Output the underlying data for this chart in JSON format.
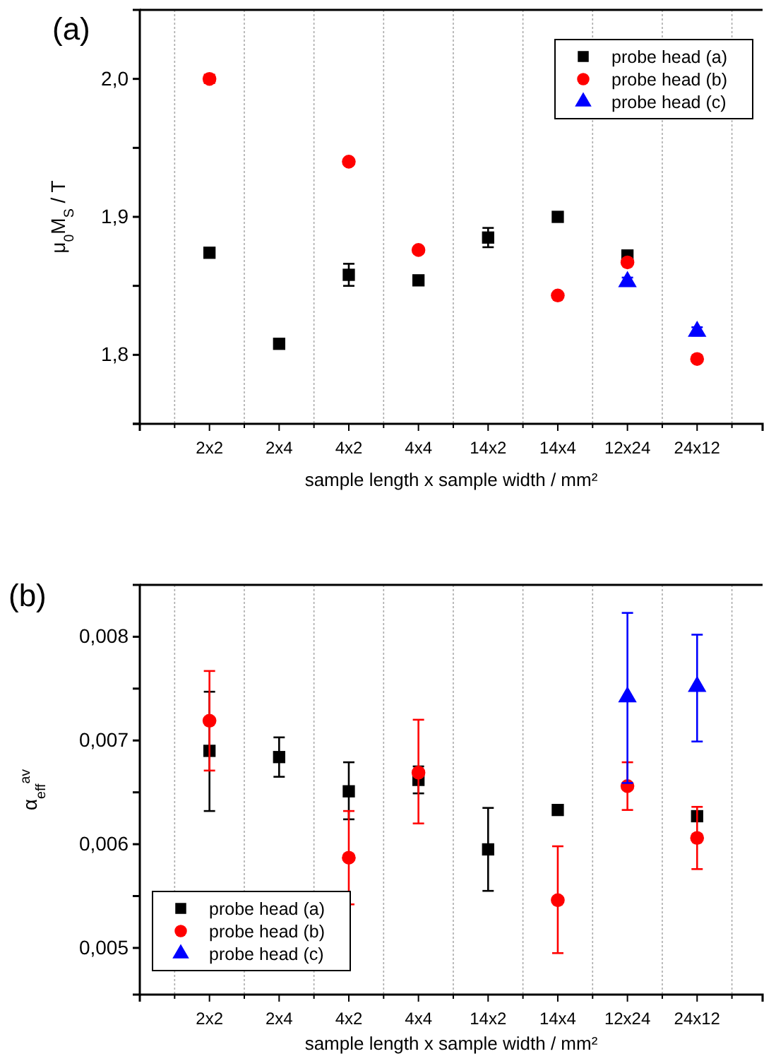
{
  "chart_data": [
    {
      "type": "scatter",
      "title": "(a)",
      "xlabel": "sample length x sample width / mm²",
      "ylabel": "μ$_{0}$M$_{S}$ / T",
      "categories": [
        "2x2",
        "2x4",
        "4x2",
        "4x4",
        "14x2",
        "14x4",
        "12x24",
        "24x12"
      ],
      "ylim": [
        1.75,
        2.05
      ],
      "yticks": [
        {
          "value": 1.75,
          "label": null
        },
        {
          "value": 1.8,
          "label": "1,8"
        },
        {
          "value": 1.85,
          "label": null
        },
        {
          "value": 1.9,
          "label": "1,9"
        },
        {
          "value": 1.95,
          "label": null
        },
        {
          "value": 2.0,
          "label": "2,0"
        }
      ],
      "grid": "x",
      "legend": "top right",
      "series": [
        {
          "name": "probe head (a)",
          "color": "#000000",
          "marker": "square",
          "values": [
            1.874,
            1.808,
            1.858,
            1.854,
            1.885,
            1.9,
            1.872,
            null
          ],
          "errors": [
            null,
            null,
            0.008,
            null,
            0.007,
            null,
            null,
            null
          ]
        },
        {
          "name": "probe head (b)",
          "color": "#ff0000",
          "marker": "circle",
          "values": [
            2.0,
            null,
            1.94,
            1.876,
            null,
            1.843,
            1.867,
            1.797
          ],
          "errors": [
            0.003,
            null,
            null,
            null,
            null,
            null,
            null,
            null
          ]
        },
        {
          "name": "probe head (c)",
          "color": "#0000ff",
          "marker": "triangle",
          "values": [
            null,
            null,
            null,
            null,
            null,
            null,
            1.853,
            1.817
          ],
          "errors": [
            null,
            null,
            null,
            null,
            null,
            null,
            0.003,
            0.003
          ]
        }
      ]
    },
    {
      "type": "scatter",
      "title": "(b)",
      "xlabel": "sample length x sample width / mm²",
      "ylabel": "α$_{eff}$$^{av}$",
      "categories": [
        "2x2",
        "2x4",
        "4x2",
        "4x4",
        "14x2",
        "14x4",
        "12x24",
        "24x12"
      ],
      "ylim": [
        0.00455,
        0.0085
      ],
      "yticks": [
        {
          "value": 0.005,
          "label": "0,005"
        },
        {
          "value": 0.0055,
          "label": null
        },
        {
          "value": 0.006,
          "label": "0,006"
        },
        {
          "value": 0.0065,
          "label": null
        },
        {
          "value": 0.007,
          "label": "0,007"
        },
        {
          "value": 0.0075,
          "label": null
        },
        {
          "value": 0.008,
          "label": "0,008"
        }
      ],
      "grid": "x",
      "legend": "bottom left",
      "series": [
        {
          "name": "probe head (a)",
          "color": "#000000",
          "marker": "square",
          "values": [
            0.0069,
            0.00684,
            0.00651,
            0.00662,
            0.00595,
            0.00633,
            null,
            0.00627
          ],
          "errors": [
            [
              0.00632,
              0.00747
            ],
            [
              0.00665,
              0.00703
            ],
            [
              0.00624,
              0.00679
            ],
            [
              0.00649,
              0.00675
            ],
            [
              0.00555,
              0.00635
            ],
            null,
            null,
            null
          ]
        },
        {
          "name": "probe head (b)",
          "color": "#ff0000",
          "marker": "circle",
          "values": [
            0.00719,
            null,
            0.00587,
            0.00669,
            null,
            0.00546,
            0.00656,
            0.00606
          ],
          "errors": [
            [
              0.00671,
              0.00767
            ],
            null,
            [
              0.00542,
              0.00632
            ],
            [
              0.0062,
              0.0072
            ],
            null,
            [
              0.00495,
              0.00598
            ],
            [
              0.00633,
              0.00679
            ],
            [
              0.00576,
              0.00636
            ]
          ]
        },
        {
          "name": "probe head (c)",
          "color": "#0000ff",
          "marker": "triangle",
          "values": [
            null,
            null,
            null,
            null,
            null,
            null,
            0.00742,
            0.00752
          ],
          "errors": [
            null,
            null,
            null,
            null,
            null,
            null,
            [
              0.00659,
              0.00823
            ],
            [
              0.00699,
              0.00802
            ]
          ]
        }
      ]
    }
  ]
}
